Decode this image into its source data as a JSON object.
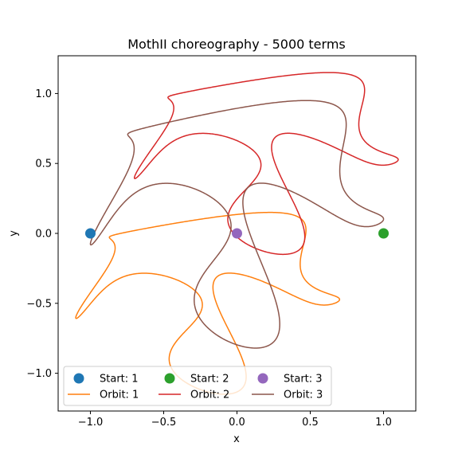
{
  "chart_data": {
    "type": "line",
    "title": "MothII choreography - 5000 terms",
    "xlabel": "x",
    "ylabel": "y",
    "xlim": [
      -1.22,
      1.22
    ],
    "ylim": [
      -1.27,
      1.27
    ],
    "xticks": [
      -1.0,
      -0.5,
      0.0,
      0.5,
      1.0
    ],
    "xtick_labels": [
      "−1.0",
      "−0.5",
      "0.0",
      "0.5",
      "1.0"
    ],
    "yticks": [
      -1.0,
      -0.5,
      0.0,
      0.5,
      1.0
    ],
    "ytick_labels": [
      "−1.0",
      "−0.5",
      "0.0",
      "0.5",
      "1.0"
    ],
    "grid": false,
    "legend_placement": "lower left",
    "legend_columns": 3,
    "start_points": [
      {
        "name": "Start: 1",
        "x": -1.0,
        "y": 0.0,
        "color": "#1f77b4"
      },
      {
        "name": "Start: 2",
        "x": 1.0,
        "y": 0.0,
        "color": "#2ca02c"
      },
      {
        "name": "Start: 3",
        "x": 0.0,
        "y": 0.0,
        "color": "#9467bd"
      }
    ],
    "orbits": [
      {
        "name": "Orbit: 1",
        "color": "#ff7f0e",
        "x_center": -0.0,
        "y_center": -0.55,
        "x_range": [
          -1.1,
          0.7
        ],
        "y_range": [
          -1.15,
          0.15
        ]
      },
      {
        "name": "Orbit: 2",
        "color": "#d62728",
        "x_center": 0.25,
        "y_center": 0.45,
        "x_range": [
          -0.7,
          1.1
        ],
        "y_range": [
          -0.15,
          1.15
        ]
      },
      {
        "name": "Orbit: 3",
        "color": "#8c564b",
        "x_center": 0.0,
        "y_center": 0.0,
        "x_range": [
          -1.0,
          1.0
        ],
        "y_range": [
          -0.82,
          0.95
        ]
      }
    ]
  }
}
